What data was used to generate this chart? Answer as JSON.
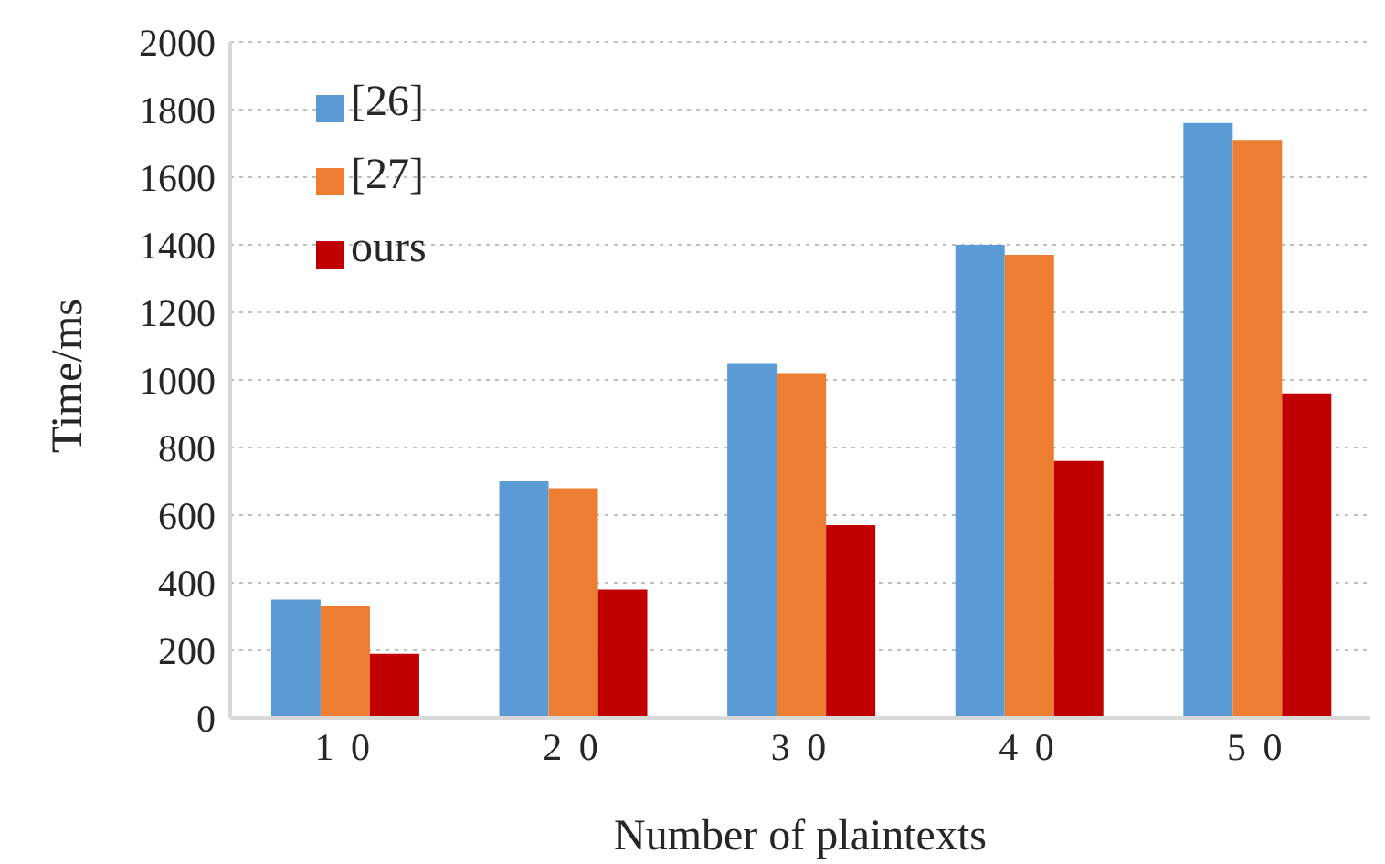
{
  "chart_data": {
    "type": "bar",
    "xlabel": "Number of plaintexts",
    "ylabel": "Time/ms",
    "categories": [
      "1 0",
      "2 0",
      "3 0",
      "4 0",
      "5 0"
    ],
    "series": [
      {
        "name": "[26]",
        "color": "#5b9bd5",
        "values": [
          350,
          700,
          1050,
          1400,
          1760
        ]
      },
      {
        "name": "[27]",
        "color": "#ed7d31",
        "values": [
          330,
          680,
          1020,
          1370,
          1710
        ]
      },
      {
        "name": "ours",
        "color": "#c00000",
        "values": [
          190,
          380,
          570,
          760,
          960
        ]
      }
    ],
    "ylim": [
      0,
      2000
    ],
    "yticks": [
      0,
      200,
      400,
      600,
      800,
      1000,
      1200,
      1400,
      1600,
      1800,
      2000
    ],
    "grid": "y",
    "legend": "top left"
  }
}
